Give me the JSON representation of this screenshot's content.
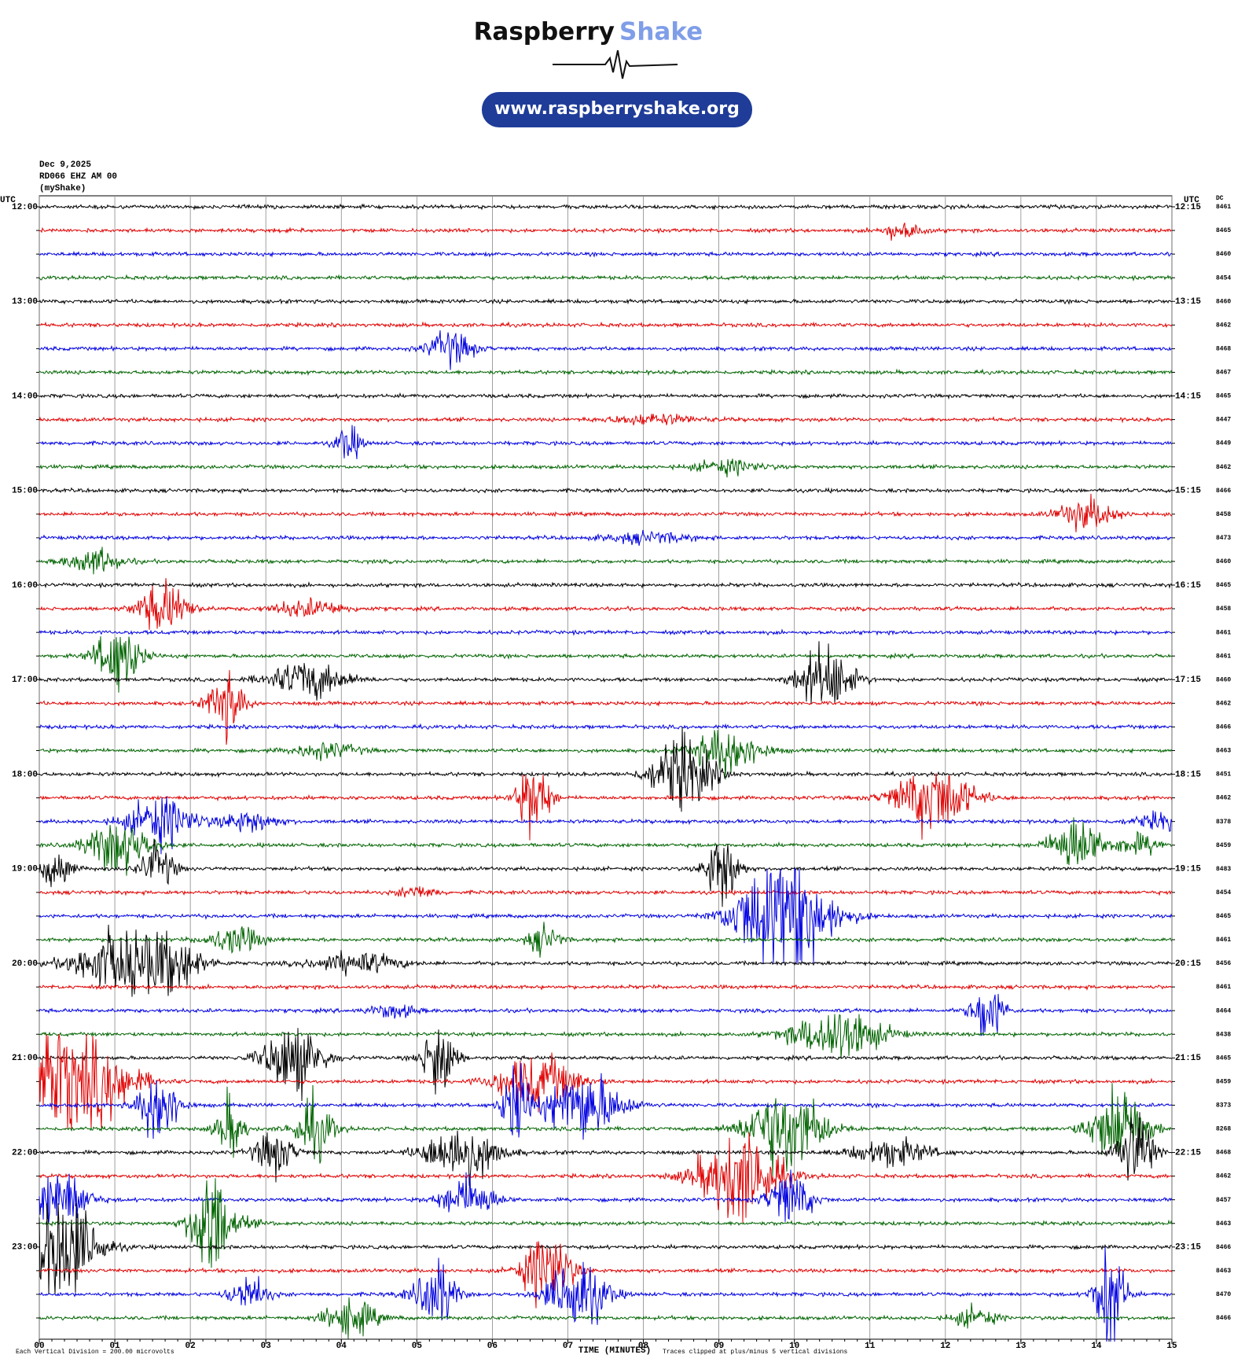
{
  "header": {
    "title_a": "Raspberry",
    "title_b": "Shake",
    "url": "www.raspberryshake.org"
  },
  "chart_data": {
    "type": "helicorder",
    "date": "Dec 9,2025",
    "station": "RD066 EHZ AM 00",
    "source": "(myShake)",
    "left_axis_label": "UTC",
    "right_axis_label": "UTC",
    "dc_label": "DC",
    "left_labels": [
      "12:00",
      "13:00",
      "14:00",
      "15:00",
      "16:00",
      "17:00",
      "18:00",
      "19:00",
      "20:00",
      "21:00",
      "22:00",
      "23:00"
    ],
    "right_labels": [
      "12:15",
      "13:15",
      "14:15",
      "15:15",
      "16:15",
      "17:15",
      "18:15",
      "19:15",
      "20:15",
      "21:15",
      "22:15",
      "23:15"
    ],
    "dc_values": [
      8461,
      8465,
      8460,
      8454,
      8460,
      8462,
      8468,
      8467,
      8465,
      8447,
      8449,
      8462,
      8466,
      8458,
      8473,
      8460,
      8465,
      8458,
      8461,
      8461,
      8460,
      8462,
      8466,
      8463,
      8451,
      8462,
      8378,
      8459,
      8483,
      8454,
      8465,
      8461,
      8456,
      8461,
      8464,
      8438,
      8465,
      8459,
      8373,
      8268,
      8468,
      8462,
      8457,
      8463,
      8466,
      8463,
      8470,
      8466
    ],
    "colors": [
      "#000000",
      "#e00000",
      "#0000e0",
      "#006400"
    ],
    "xlabel": "TIME (MINUTES)",
    "xlim": [
      0,
      15
    ],
    "xticks": [
      {
        "value": 0,
        "label": "00"
      },
      {
        "value": 1,
        "label": "01"
      },
      {
        "value": 2,
        "label": "02"
      },
      {
        "value": 3,
        "label": "03"
      },
      {
        "value": 4,
        "label": "04"
      },
      {
        "value": 5,
        "label": "05"
      },
      {
        "value": 6,
        "label": "06"
      },
      {
        "value": 7,
        "label": "07"
      },
      {
        "value": 8,
        "label": "08"
      },
      {
        "value": 9,
        "label": "09"
      },
      {
        "value": 10,
        "label": "10"
      },
      {
        "value": 11,
        "label": "11"
      },
      {
        "value": 12,
        "label": "12"
      },
      {
        "value": 13,
        "label": "13"
      },
      {
        "value": 14,
        "label": "14"
      },
      {
        "value": 15,
        "label": "15"
      }
    ],
    "grid": true,
    "footer_scale": "Each Vertical Division =  200.00 microvolts",
    "footer_clip": "Traces clipped at plus/minus 5 vertical divisions"
  }
}
